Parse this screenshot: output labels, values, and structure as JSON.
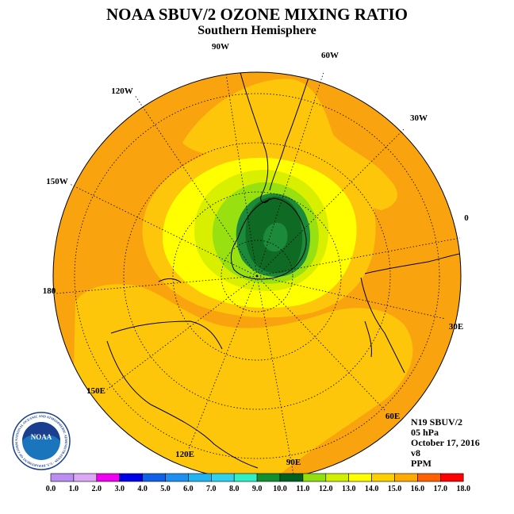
{
  "header": {
    "title": "NOAA SBUV/2 OZONE MIXING RATIO",
    "subtitle": "Southern Hemisphere"
  },
  "map": {
    "projection": "polar stereographic",
    "hemisphere": "south",
    "longitude_labels": [
      "90W",
      "60W",
      "30W",
      "0",
      "30E",
      "60E",
      "90E",
      "120E",
      "150E",
      "180",
      "150W",
      "120W"
    ]
  },
  "info": {
    "satellite": "N19 SBUV/2",
    "level": "05 hPa",
    "date": "October 17, 2016",
    "version": "v8",
    "units": "PPM"
  },
  "colorbar": {
    "ticks": [
      "0.0",
      "1.0",
      "2.0",
      "3.0",
      "4.0",
      "5.0",
      "6.0",
      "7.0",
      "8.0",
      "9.0",
      "10.0",
      "11.0",
      "12.0",
      "13.0",
      "14.0",
      "15.0",
      "16.0",
      "17.0",
      "18.0"
    ],
    "colors": [
      "#b98ef0",
      "#dca8f5",
      "#f000f0",
      "#0000e8",
      "#1060e8",
      "#1c8ff0",
      "#20b4f0",
      "#30d0f0",
      "#30f0c8",
      "#109030",
      "#006020",
      "#90e010",
      "#d0f000",
      "#ffff00",
      "#ffd000",
      "#ffaa00",
      "#ff6000",
      "#ff0000",
      "#8c4a30"
    ]
  },
  "logo": {
    "text": "NOAA",
    "ring_text": "NATIONAL OCEANIC AND ATMOSPHERIC ADMINISTRATION · U.S. DEPARTMENT OF COMMERCE"
  },
  "colors": {
    "orange": "#f9a40f",
    "gold": "#fdc60b",
    "yellow": "#ffff00",
    "light_green": "#d8f000",
    "green": "#98e010",
    "dark_green": "#0f6a23",
    "mid_green": "#1c8a3b"
  }
}
